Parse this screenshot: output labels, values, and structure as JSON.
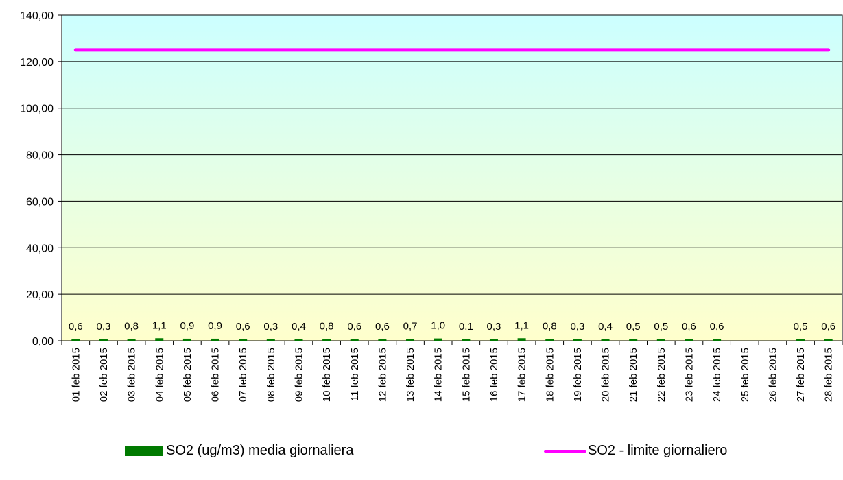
{
  "chart_data": {
    "type": "bar",
    "categories": [
      "01 feb 2015",
      "02 feb 2015",
      "03 feb 2015",
      "04 feb 2015",
      "05 feb 2015",
      "06 feb 2015",
      "07 feb 2015",
      "08 feb 2015",
      "09 feb 2015",
      "10 feb 2015",
      "11 feb 2015",
      "12 feb 2015",
      "13 feb 2015",
      "14 feb 2015",
      "15 feb 2015",
      "16 feb 2015",
      "17 feb 2015",
      "18 feb 2015",
      "19 feb 2015",
      "20 feb 2015",
      "21 feb 2015",
      "22 feb 2015",
      "23 feb 2015",
      "24 feb 2015",
      "25 feb 2015",
      "26 feb 2015",
      "27 feb 2015",
      "28 feb 2015"
    ],
    "series": [
      {
        "name": "SO2 (ug/m3) media giornaliera",
        "type": "bar",
        "color": "#007a00",
        "values": [
          0.6,
          0.3,
          0.8,
          1.1,
          0.9,
          0.9,
          0.6,
          0.3,
          0.4,
          0.8,
          0.6,
          0.6,
          0.7,
          1.0,
          0.1,
          0.3,
          1.1,
          0.8,
          0.3,
          0.4,
          0.5,
          0.5,
          0.6,
          0.6,
          null,
          null,
          0.5,
          0.6
        ],
        "labels": [
          "0,6",
          "0,3",
          "0,8",
          "1,1",
          "0,9",
          "0,9",
          "0,6",
          "0,3",
          "0,4",
          "0,8",
          "0,6",
          "0,6",
          "0,7",
          "1,0",
          "0,1",
          "0,3",
          "1,1",
          "0,8",
          "0,3",
          "0,4",
          "0,5",
          "0,5",
          "0,6",
          "0,6",
          "",
          "",
          "0,5",
          "0,6"
        ]
      },
      {
        "name": "SO2 - limite giornaliero",
        "type": "line",
        "color": "#ff00ff",
        "values": [
          125,
          125,
          125,
          125,
          125,
          125,
          125,
          125,
          125,
          125,
          125,
          125,
          125,
          125,
          125,
          125,
          125,
          125,
          125,
          125,
          125,
          125,
          125,
          125,
          125,
          125,
          125,
          125
        ]
      }
    ],
    "ylim": [
      0,
      140
    ],
    "yticks": [
      0,
      20,
      40,
      60,
      80,
      100,
      120,
      140
    ],
    "ytick_labels": [
      "0,00",
      "20,00",
      "40,00",
      "60,00",
      "80,00",
      "100,00",
      "120,00",
      "140,00"
    ],
    "grid": true,
    "legend_position": "bottom",
    "background_gradient": [
      "#ccffff",
      "#ffffcc"
    ]
  }
}
